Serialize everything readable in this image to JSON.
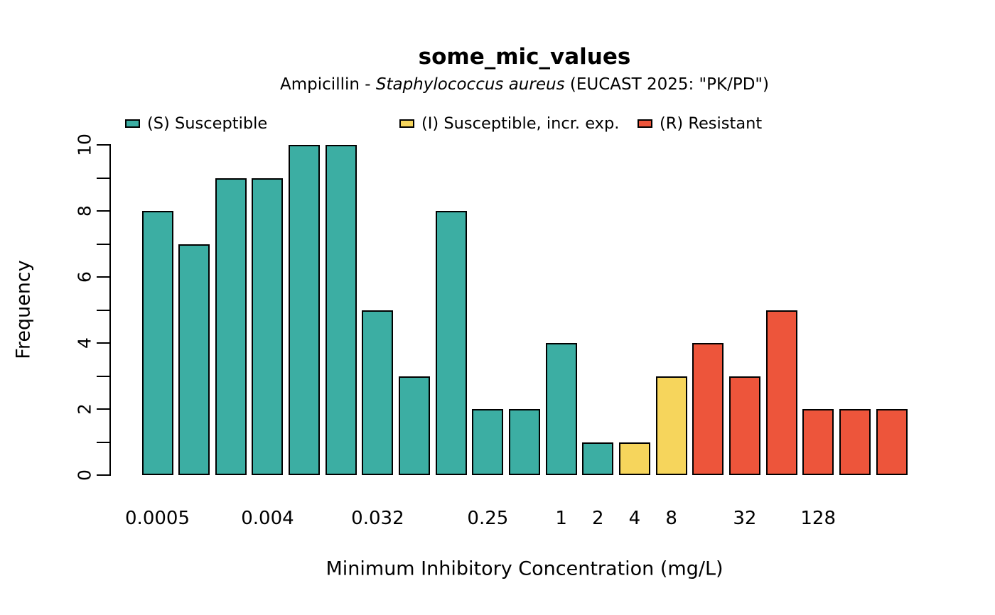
{
  "title": "some_mic_values",
  "subtitle": {
    "prefix": "Ampicillin - ",
    "italic_species": "Staphylococcus aureus",
    "suffix": " (EUCAST 2025: \"PK/PD\")"
  },
  "legend": [
    {
      "key": "S",
      "label": "(S) Susceptible",
      "color": "#3CAEA3"
    },
    {
      "key": "I",
      "label": "(I) Susceptible, incr. exp.",
      "color": "#F6D55C"
    },
    {
      "key": "R",
      "label": "(R) Resistant",
      "color": "#ED553B"
    }
  ],
  "chart_data": {
    "type": "bar",
    "title": "some_mic_values",
    "subtitle": "Ampicillin - Staphylococcus aureus (EUCAST 2025: \"PK/PD\")",
    "xlabel": "Minimum Inhibitory Concentration (mg/L)",
    "ylabel": "Frequency",
    "ylim": [
      0,
      10
    ],
    "y_major_tick_labels": [
      0,
      2,
      4,
      6,
      8,
      10
    ],
    "y_minor_tick_step": 1,
    "grid": false,
    "legend_position": "top",
    "categories": [
      "0.0005",
      "0.001",
      "0.002",
      "0.004",
      "0.008",
      "0.016",
      "0.032",
      "0.064",
      "0.125",
      "0.25",
      "0.5",
      "1",
      "2",
      "4",
      "8",
      "16",
      "32",
      "64",
      "128",
      "256",
      "512"
    ],
    "values": [
      8,
      7,
      9,
      9,
      10,
      10,
      5,
      3,
      8,
      2,
      2,
      4,
      1,
      1,
      3,
      4,
      3,
      5,
      2,
      2,
      2
    ],
    "interpretation": [
      "S",
      "S",
      "S",
      "S",
      "S",
      "S",
      "S",
      "S",
      "S",
      "S",
      "S",
      "S",
      "S",
      "I",
      "I",
      "R",
      "R",
      "R",
      "R",
      "R",
      "R"
    ],
    "x_tick_labels_shown": [
      "0.0005",
      "0.004",
      "0.032",
      "0.25",
      "1",
      "2",
      "4",
      "8",
      "32",
      "128"
    ],
    "colors": {
      "S": "#3CAEA3",
      "I": "#F6D55C",
      "R": "#ED553B"
    },
    "bar_border_color": "#000000"
  }
}
